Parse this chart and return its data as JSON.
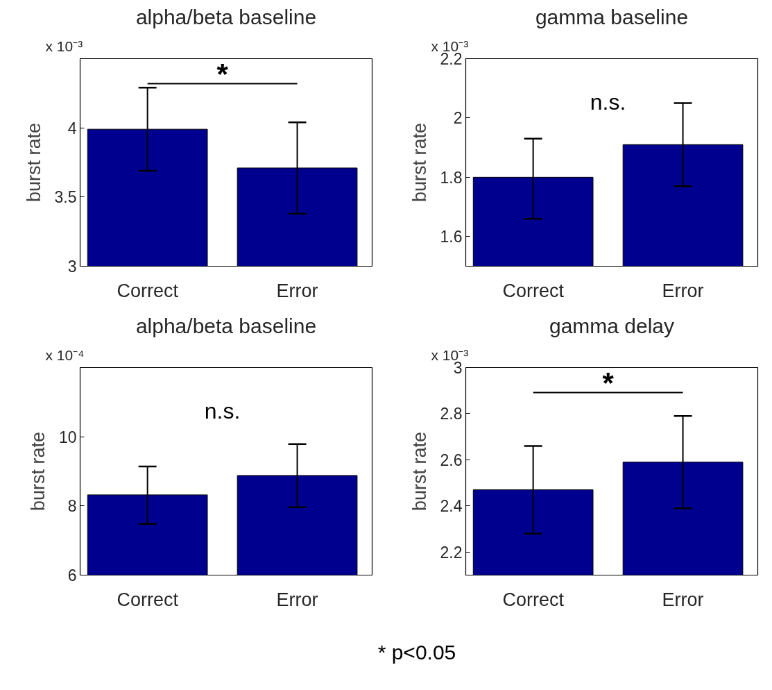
{
  "chart_data": [
    {
      "type": "bar",
      "title": "alpha/beta baseline",
      "ylabel": "burst rate",
      "categories": [
        "Correct",
        "Error"
      ],
      "values": [
        3.99,
        3.71
      ],
      "errors": [
        [
          3.69,
          4.29
        ],
        [
          3.38,
          4.04
        ]
      ],
      "color": "#00008f",
      "ylim": [
        3,
        4.5
      ],
      "yticks": [
        3,
        3.5,
        4
      ],
      "annotations": [
        "x 10⁻³",
        "*"
      ]
    },
    {
      "type": "bar",
      "title": "gamma baseline",
      "ylabel": "burst rate",
      "categories": [
        "Correct",
        "Error"
      ],
      "values": [
        1.8,
        1.91
      ],
      "errors": [
        [
          1.66,
          1.93
        ],
        [
          1.77,
          2.05
        ]
      ],
      "color": "#00008f",
      "ylim": [
        1.5,
        2.2
      ],
      "yticks": [
        1.6,
        1.8,
        2,
        2.2
      ],
      "annotations": [
        "x 10⁻³",
        "n.s."
      ]
    },
    {
      "type": "bar",
      "title": "alpha/beta baseline",
      "ylabel": "burst rate",
      "categories": [
        "Correct",
        "Error"
      ],
      "values": [
        8.32,
        8.88
      ],
      "errors": [
        [
          7.48,
          9.14
        ],
        [
          7.96,
          9.79
        ]
      ],
      "color": "#00008f",
      "ylim": [
        6,
        12
      ],
      "yticks": [
        6,
        8,
        10
      ],
      "annotations": [
        "x 10⁻⁴",
        "n.s."
      ]
    },
    {
      "type": "bar",
      "title": "gamma delay",
      "ylabel": "burst rate",
      "categories": [
        "Correct",
        "Error"
      ],
      "values": [
        2.47,
        2.59
      ],
      "errors": [
        [
          2.28,
          2.66
        ],
        [
          2.39,
          2.79
        ]
      ],
      "color": "#00008f",
      "ylim": [
        2.1,
        3
      ],
      "yticks": [
        2.2,
        2.4,
        2.6,
        2.8,
        3
      ],
      "annotations": [
        "x 10⁻³",
        "*"
      ]
    },
    {
      "type": "other",
      "annotations": [
        "* p<0.05"
      ]
    }
  ]
}
